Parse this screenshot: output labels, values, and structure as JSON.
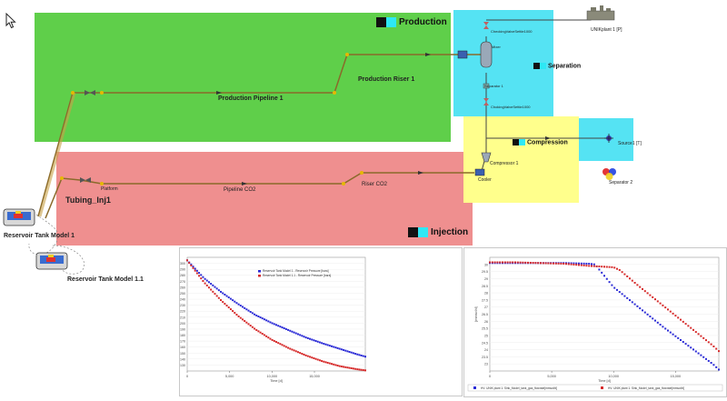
{
  "zones": {
    "production": {
      "label": "Production",
      "color": "#5fcf4a"
    },
    "injection": {
      "label": "Injection",
      "color": "#ef8f8f"
    },
    "separation": {
      "label": "Separation",
      "color": "#55e3f3"
    },
    "compression": {
      "label": "Compression",
      "color": "#ffff8c"
    },
    "small_cyan": {
      "color": "#55e3f3"
    }
  },
  "labels": {
    "production_pipeline": "Production Pipeline 1",
    "production_riser": "Production Riser 1",
    "tubing_inj": "Tubing_Inj1",
    "pipeline_co2": "Pipeline CO2",
    "riser_co2": "Riser CO2",
    "platform": "Platform",
    "reservoir_1": "Reservoir Tank Model 1",
    "reservoir_2": "Reservoir Tank Model 1.1",
    "source": "UNIKplant 1 [P]",
    "sink": "Source1 [T]",
    "separator": "Separator 2",
    "cooler": "Cooler",
    "compressor": "Compressor 1",
    "valve_top": "CheckingValveSettle1000",
    "valve_mid": "ChokingValveSettle1000",
    "sep_label": "Separator 1",
    "mixer": "Mixer"
  },
  "chart_data": [
    {
      "type": "line",
      "title": "",
      "xlabel": "Time [d]",
      "ylabel": "[bara]",
      "xlim": [
        0,
        21000
      ],
      "ylim": [
        120,
        310
      ],
      "xticks": [
        "0",
        "5,000",
        "10,000",
        "15,000"
      ],
      "yticks": [
        "130",
        "140",
        "150",
        "160",
        "170",
        "180",
        "190",
        "200",
        "210",
        "220",
        "230",
        "240",
        "250",
        "260",
        "270",
        "280",
        "290",
        "300"
      ],
      "legend_position": "top-right",
      "series": [
        {
          "name": "Reservoir Tank Model 1 - Reservoir Pressure [bara]",
          "color": "#2b2bd6",
          "x": [
            0,
            2000,
            4000,
            6000,
            8000,
            10000,
            12000,
            14000,
            16000,
            18000,
            20000,
            21000
          ],
          "y": [
            305,
            275,
            252,
            232,
            214,
            200,
            188,
            176,
            166,
            157,
            148,
            144
          ]
        },
        {
          "name": "Reservoir Tank Model 1.1 - Reservoir Pressure [bara]",
          "color": "#d62b2b",
          "x": [
            0,
            2000,
            4000,
            6000,
            8000,
            10000,
            12000,
            14000,
            16000,
            18000,
            20000,
            21000
          ],
          "y": [
            305,
            268,
            238,
            212,
            190,
            172,
            158,
            146,
            136,
            128,
            123,
            121
          ]
        }
      ]
    },
    {
      "type": "line",
      "title": "",
      "xlabel": "Time [d]",
      "ylabel": "[mmscf/d]",
      "xlim": [
        0,
        18500
      ],
      "ylim": [
        22.5,
        30.5
      ],
      "xticks": [
        "0",
        "5,000",
        "10,000",
        "15,000"
      ],
      "yticks": [
        "23",
        "23.5",
        "24",
        "24.5",
        "25",
        "25.5",
        "26",
        "26.5",
        "27",
        "27.5",
        "28",
        "28.5",
        "29",
        "29.5",
        "30"
      ],
      "legend_position": "bottom",
      "series": [
        {
          "name": "HV: UNIK plant 1: Sink_Model_tank_gas_flowrate[mmscf/d]",
          "color": "#2b2bd6",
          "x": [
            0,
            2000,
            4000,
            6000,
            8000,
            8500,
            10000,
            12000,
            14000,
            16000,
            18000,
            18500
          ],
          "y": [
            30.1,
            30.1,
            30.1,
            30.1,
            30.05,
            30.0,
            28.4,
            27.0,
            25.6,
            24.3,
            23.0,
            22.6
          ]
        },
        {
          "name": "HV: UNIK plant 1: Sink_Model_tank_gas_flowrate[mmscf/d]",
          "color": "#d62b2b",
          "x": [
            0,
            2000,
            4000,
            6000,
            8000,
            10000,
            10500,
            12000,
            14000,
            16000,
            18000,
            18500
          ],
          "y": [
            30.15,
            30.15,
            30.1,
            30.05,
            29.9,
            29.8,
            29.6,
            28.5,
            27.1,
            25.7,
            24.3,
            23.9
          ]
        }
      ]
    }
  ]
}
